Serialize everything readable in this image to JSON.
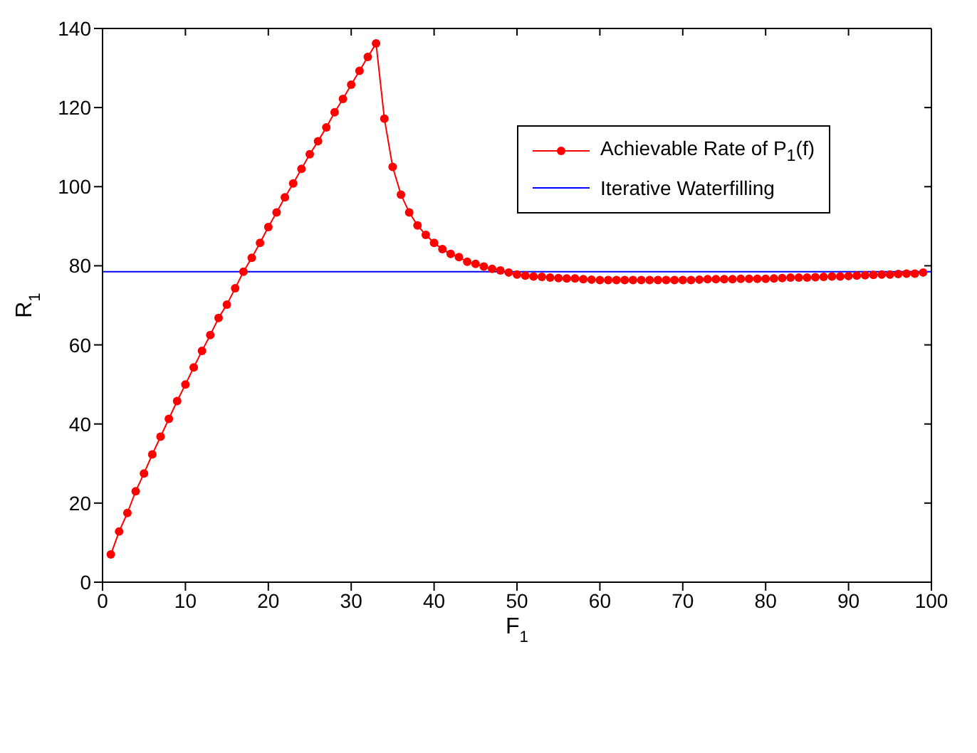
{
  "chart_data": {
    "type": "line",
    "xlabel": "F$_{1}$",
    "ylabel": "R$_{1}$",
    "xlim": [
      0,
      100
    ],
    "xticks": [
      0,
      10,
      20,
      30,
      40,
      50,
      60,
      70,
      80,
      90,
      100
    ],
    "ylim": [
      0,
      140
    ],
    "yticks": [
      0,
      20,
      40,
      60,
      80,
      100,
      120,
      140
    ],
    "grid": false,
    "legend": "top right",
    "line_style": "solid",
    "series": [
      {
        "name": "Achievable Rate of P$_{1}$(f)",
        "color": "#ff0000",
        "marker": "circle",
        "x": [
          1,
          2,
          3,
          4,
          5,
          6,
          7,
          8,
          9,
          10,
          11,
          12,
          13,
          14,
          15,
          16,
          17,
          18,
          19,
          20,
          21,
          22,
          23,
          24,
          25,
          26,
          27,
          28,
          29,
          30,
          31,
          32,
          33,
          34,
          35,
          36,
          37,
          38,
          39,
          40,
          41,
          42,
          43,
          44,
          45,
          46,
          47,
          48,
          49,
          50,
          51,
          52,
          53,
          54,
          55,
          56,
          57,
          58,
          59,
          60,
          61,
          62,
          63,
          64,
          65,
          66,
          67,
          68,
          69,
          70,
          71,
          72,
          73,
          74,
          75,
          76,
          77,
          78,
          79,
          80,
          81,
          82,
          83,
          84,
          85,
          86,
          87,
          88,
          89,
          90,
          91,
          92,
          93,
          94,
          95,
          96,
          97,
          98,
          99
        ],
        "values": [
          7,
          12.8,
          17.5,
          23,
          27.5,
          32.3,
          36.8,
          41.3,
          45.8,
          50,
          54.3,
          58.5,
          62.5,
          66.8,
          70.2,
          74.3,
          78.5,
          82,
          85.8,
          89.8,
          93.5,
          97.3,
          100.8,
          104.5,
          108.2,
          111.5,
          115,
          118.8,
          122.2,
          125.8,
          129.3,
          132.8,
          136.2,
          117.2,
          105,
          98,
          93.5,
          90.2,
          87.8,
          85.8,
          84.2,
          83,
          82.2,
          81,
          80.5,
          79.8,
          79.2,
          78.8,
          78.3,
          77.8,
          77.5,
          77.3,
          77.2,
          77,
          76.9,
          76.8,
          76.8,
          76.6,
          76.5,
          76.4,
          76.4,
          76.4,
          76.4,
          76.4,
          76.4,
          76.4,
          76.4,
          76.4,
          76.4,
          76.4,
          76.4,
          76.5,
          76.6,
          76.6,
          76.6,
          76.6,
          76.7,
          76.7,
          76.7,
          76.7,
          76.8,
          76.9,
          77,
          77,
          77,
          77.1,
          77.2,
          77.3,
          77.3,
          77.4,
          77.5,
          77.6,
          77.7,
          77.8,
          77.8,
          77.9,
          78,
          78,
          78.3
        ]
      },
      {
        "name": "Iterative Waterfilling",
        "color": "#0000ff",
        "marker": "none",
        "x": [
          0,
          100
        ],
        "values": [
          78.5,
          78.5
        ]
      }
    ]
  }
}
